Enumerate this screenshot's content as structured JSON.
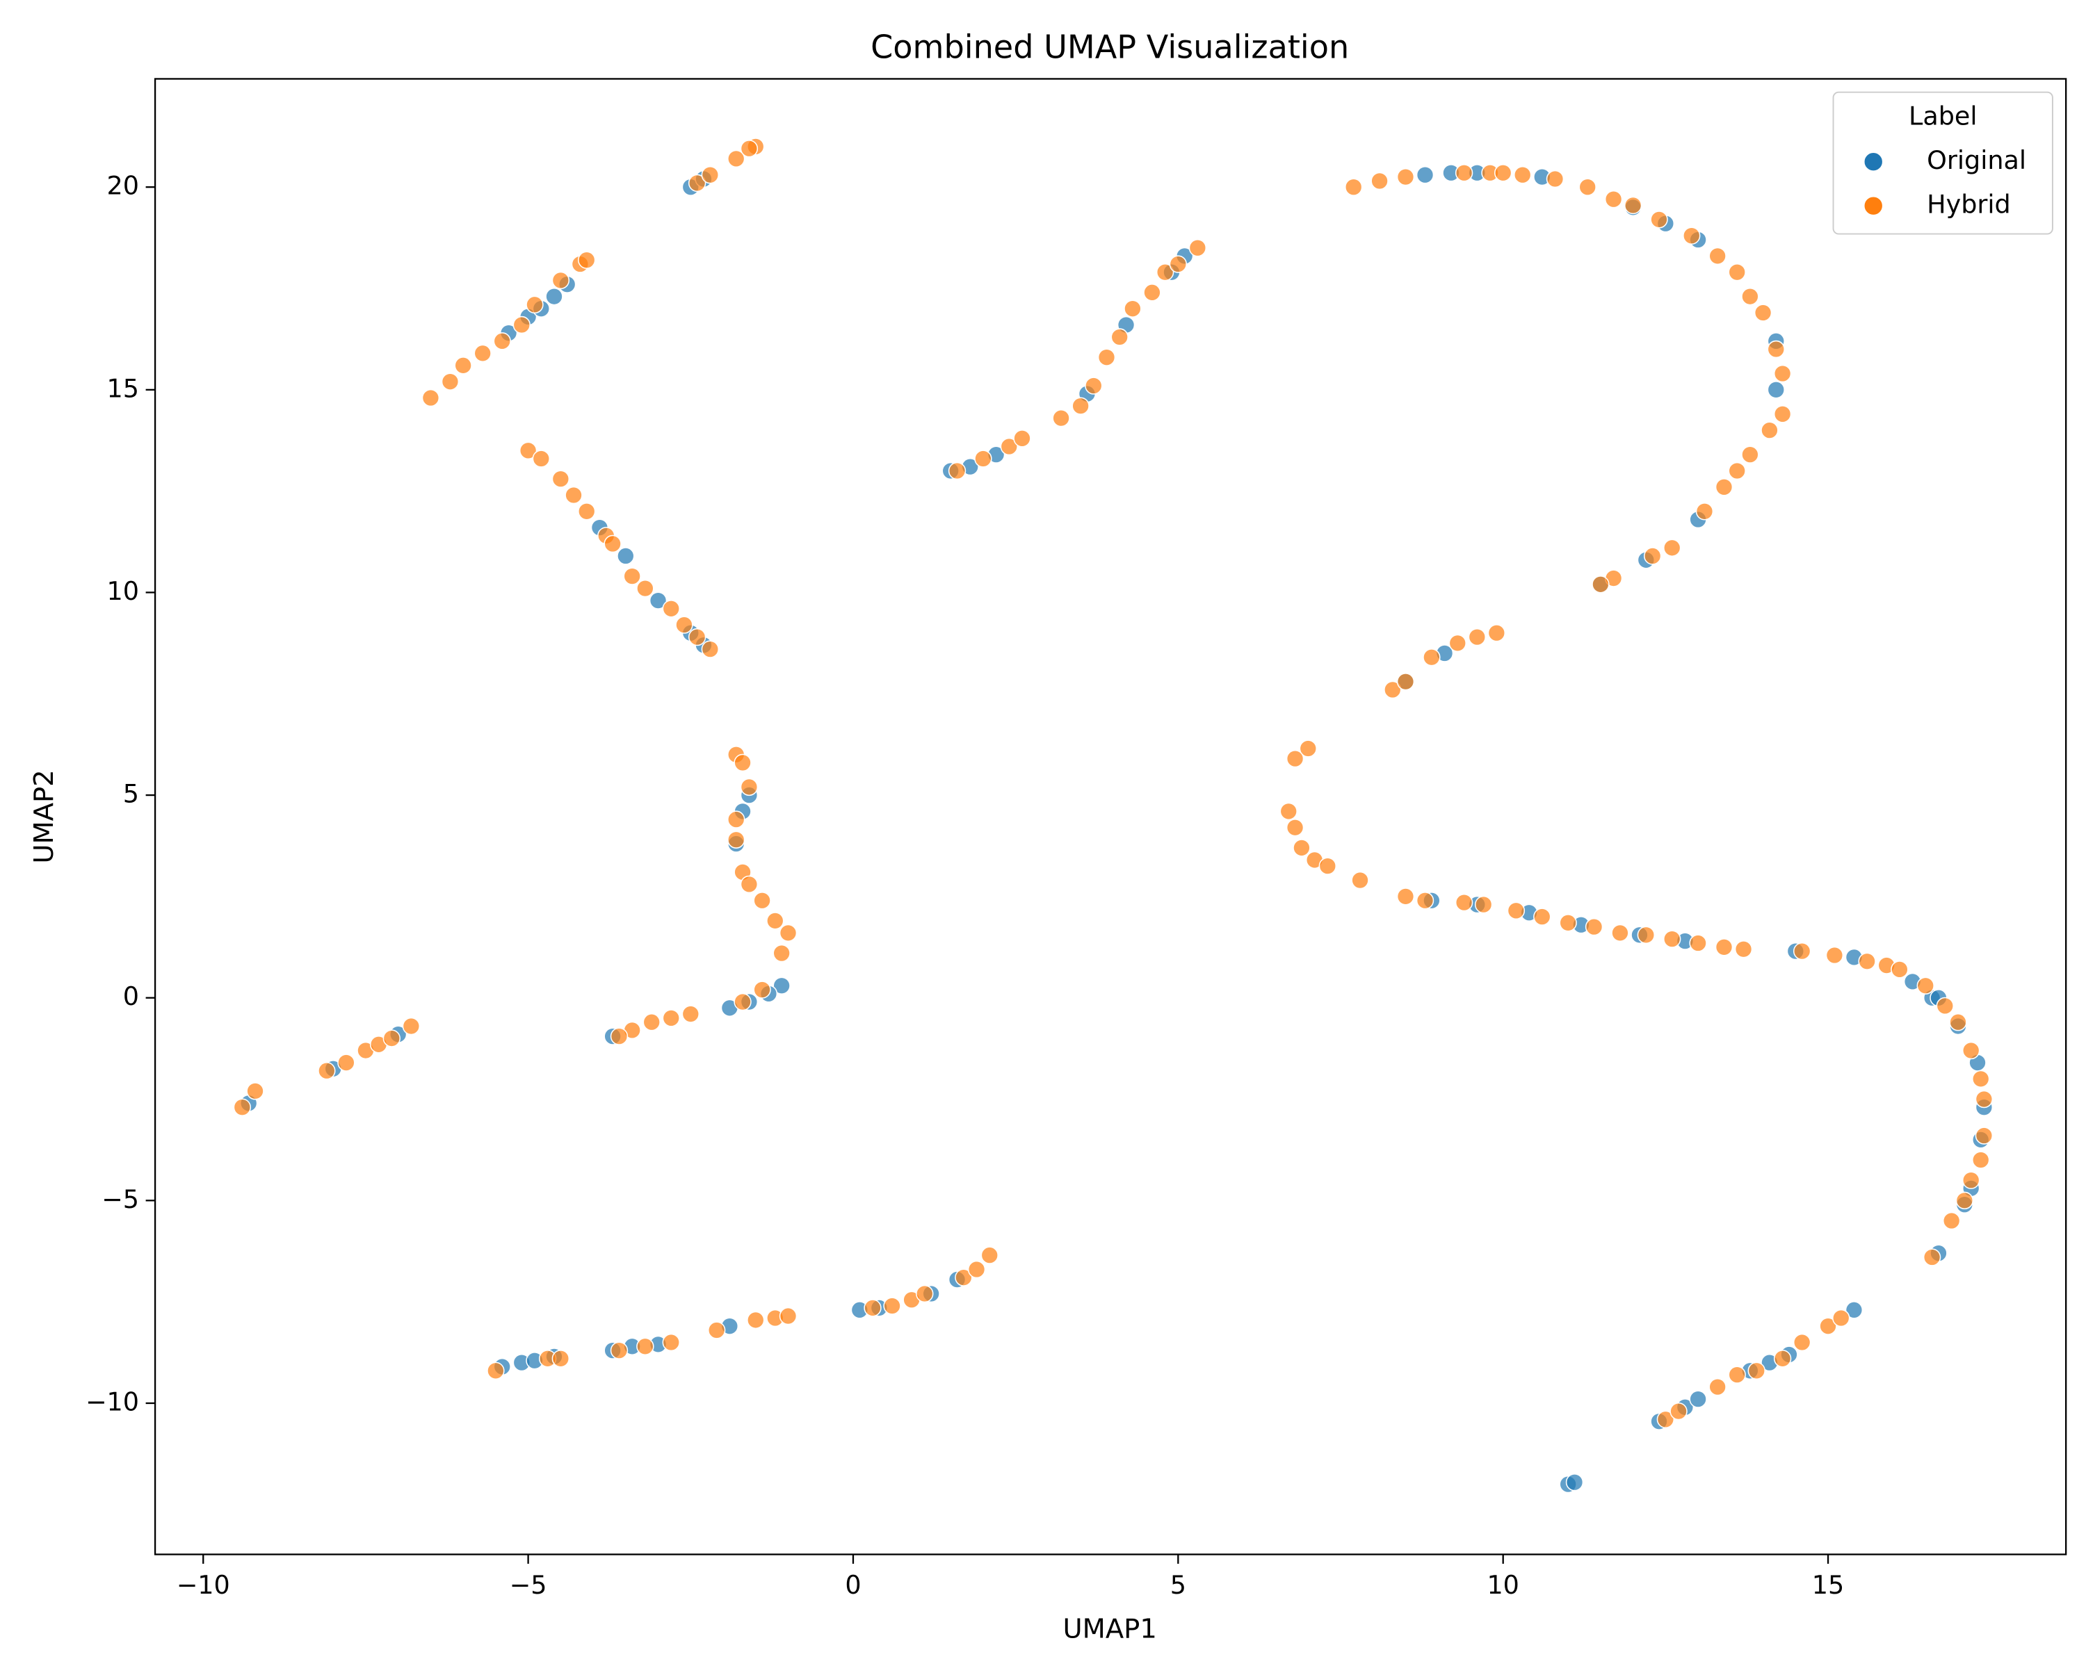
{
  "chart_data": {
    "type": "scatter",
    "title": "Combined UMAP Visualization",
    "xlabel": "UMAP1",
    "ylabel": "UMAP2",
    "xlim": [
      -10.74,
      18.66
    ],
    "ylim": [
      -13.73,
      22.67
    ],
    "xticks": [
      {
        "value": -10,
        "label": "−10"
      },
      {
        "value": -5,
        "label": "−5"
      },
      0,
      5,
      10,
      15
    ],
    "yticks": [
      {
        "value": -10,
        "label": "−10"
      },
      {
        "value": -5,
        "label": "−5"
      },
      0,
      5,
      10,
      15,
      20
    ],
    "grid": false,
    "legend_title": "Label",
    "legend_position": "upper right",
    "alpha": 0.7,
    "series": [
      {
        "name": "Original",
        "color": "#1f77b4",
        "x": [
          -2.5,
          -2.3,
          -5.3,
          -5.0,
          -4.8,
          -4.6,
          -4.4,
          -3.9,
          -3.5,
          -3.0,
          -2.5,
          -2.3,
          -1.6,
          -1.7,
          -1.8,
          -1.1,
          -1.3,
          -1.6,
          -1.9,
          -3.7,
          -9.3,
          -8.0,
          -7.0,
          -5.4,
          -5.1,
          -4.9,
          -4.6,
          -3.7,
          -3.4,
          -3.0,
          -1.9,
          0.1,
          0.4,
          1.2,
          1.6,
          1.5,
          1.8,
          2.2,
          3.6,
          4.2,
          4.9,
          5.1,
          8.8,
          9.2,
          9.6,
          10.6,
          12.0,
          12.5,
          13.0,
          14.2,
          14.2,
          13.0,
          11.5,
          12.2,
          8.5,
          9.1,
          8.9,
          9.6,
          10.4,
          11.2,
          12.1,
          12.8,
          14.5,
          15.4,
          16.3,
          16.6,
          16.7,
          17.0,
          17.3,
          17.4,
          17.35,
          17.2,
          17.1,
          16.7,
          12.4,
          12.8,
          13.0,
          13.8,
          14.1,
          14.4,
          15.4,
          11.0,
          11.1
        ],
        "values": [
          20.0,
          20.2,
          16.4,
          16.8,
          17.0,
          17.3,
          17.6,
          11.6,
          10.9,
          9.8,
          9.0,
          8.7,
          5.0,
          4.6,
          3.8,
          0.3,
          0.1,
          -0.1,
          -0.25,
          -0.95,
          -2.6,
          -1.75,
          -0.9,
          -9.1,
          -9.0,
          -8.95,
          -8.85,
          -8.7,
          -8.6,
          -8.55,
          -8.1,
          -7.7,
          -7.65,
          -7.3,
          -6.95,
          13.0,
          13.1,
          13.4,
          14.9,
          16.6,
          17.9,
          18.3,
          20.3,
          20.35,
          20.35,
          20.25,
          19.5,
          19.1,
          18.7,
          15.0,
          16.2,
          11.8,
          10.2,
          10.8,
          7.8,
          8.5,
          2.4,
          2.3,
          2.1,
          1.8,
          1.55,
          1.4,
          1.15,
          1.0,
          0.4,
          0.0,
          0.0,
          -0.7,
          -1.6,
          -2.7,
          -3.5,
          -4.7,
          -5.1,
          -6.3,
          -10.45,
          -10.1,
          -9.9,
          -9.2,
          -9.0,
          -8.8,
          -7.7,
          -12.0,
          -11.95
        ]
      },
      {
        "name": "Hybrid",
        "color": "#ff7f0e",
        "x": [
          -2.4,
          -2.2,
          -1.8,
          -1.5,
          -1.6,
          -6.5,
          -6.2,
          -6.0,
          -5.7,
          -5.4,
          -5.1,
          -4.9,
          -4.5,
          -4.2,
          -4.1,
          -5.0,
          -4.8,
          -4.5,
          -4.3,
          -4.1,
          -3.8,
          -3.7,
          -3.4,
          -3.2,
          -2.8,
          -2.6,
          -2.4,
          -2.2,
          -1.8,
          -1.7,
          -1.6,
          -1.8,
          -1.8,
          -1.7,
          -1.6,
          -1.4,
          -1.2,
          -1.0,
          -1.1,
          -1.4,
          -1.7,
          -2.5,
          -2.8,
          -3.1,
          -3.4,
          -3.6,
          -9.4,
          -9.2,
          -8.1,
          -7.8,
          -7.5,
          -7.3,
          -7.1,
          -6.8,
          -5.5,
          -4.7,
          -4.5,
          -3.6,
          -3.2,
          -2.8,
          -2.1,
          -1.5,
          -1.2,
          -1.0,
          0.3,
          0.6,
          0.9,
          1.1,
          1.7,
          1.9,
          2.1,
          1.6,
          2.0,
          2.4,
          2.6,
          3.2,
          3.5,
          3.7,
          3.9,
          4.1,
          4.3,
          4.6,
          4.8,
          5.0,
          5.3,
          7.7,
          8.1,
          8.5,
          9.4,
          9.8,
          10.0,
          10.3,
          10.8,
          11.3,
          11.7,
          12.0,
          12.4,
          12.9,
          13.3,
          13.6,
          13.8,
          14.0,
          14.2,
          14.3,
          14.3,
          14.1,
          13.8,
          13.6,
          13.4,
          13.1,
          12.6,
          12.3,
          11.7,
          11.5,
          8.3,
          8.5,
          8.9,
          9.3,
          9.6,
          9.9,
          7.0,
          6.8,
          6.7,
          6.8,
          6.9,
          7.1,
          7.3,
          7.8,
          8.5,
          8.8,
          9.4,
          9.7,
          10.2,
          10.6,
          11.0,
          11.4,
          11.8,
          12.2,
          12.6,
          13.0,
          13.4,
          13.7,
          14.6,
          15.1,
          15.6,
          15.9,
          16.1,
          16.5,
          16.8,
          17.0,
          17.2,
          17.35,
          17.4,
          17.4,
          17.35,
          17.2,
          17.1,
          16.9,
          16.6,
          12.5,
          12.7,
          13.3,
          13.6,
          13.9,
          14.3,
          14.6,
          15.0,
          15.2
        ],
        "values": [
          20.1,
          20.3,
          20.7,
          21.0,
          20.95,
          14.8,
          15.2,
          15.6,
          15.9,
          16.2,
          16.6,
          17.1,
          17.7,
          18.1,
          18.2,
          13.5,
          13.3,
          12.8,
          12.4,
          12.0,
          11.4,
          11.2,
          10.4,
          10.1,
          9.6,
          9.2,
          8.9,
          8.6,
          6.0,
          5.8,
          5.2,
          4.4,
          3.9,
          3.1,
          2.8,
          2.4,
          1.9,
          1.6,
          1.1,
          0.2,
          -0.1,
          -0.4,
          -0.5,
          -0.6,
          -0.8,
          -0.95,
          -2.7,
          -2.3,
          -1.8,
          -1.6,
          -1.3,
          -1.15,
          -1.0,
          -0.7,
          -9.2,
          -8.9,
          -8.9,
          -8.7,
          -8.6,
          -8.5,
          -8.2,
          -7.95,
          -7.9,
          -7.85,
          -7.65,
          -7.6,
          -7.45,
          -7.3,
          -6.9,
          -6.7,
          -6.35,
          13.0,
          13.3,
          13.6,
          13.8,
          14.3,
          14.6,
          15.1,
          15.8,
          16.3,
          17.0,
          17.4,
          17.9,
          18.1,
          18.5,
          20.0,
          20.15,
          20.25,
          20.35,
          20.35,
          20.35,
          20.3,
          20.2,
          20.0,
          19.7,
          19.55,
          19.2,
          18.8,
          18.3,
          17.9,
          17.3,
          16.9,
          16.0,
          15.4,
          14.4,
          14.0,
          13.4,
          13.0,
          12.6,
          12.0,
          11.1,
          10.9,
          10.35,
          10.2,
          7.6,
          7.8,
          8.4,
          8.75,
          8.9,
          9.0,
          6.15,
          5.9,
          4.6,
          4.2,
          3.7,
          3.4,
          3.25,
          2.9,
          2.5,
          2.4,
          2.35,
          2.3,
          2.15,
          2.0,
          1.85,
          1.75,
          1.6,
          1.55,
          1.45,
          1.35,
          1.25,
          1.2,
          1.15,
          1.05,
          0.9,
          0.8,
          0.7,
          0.3,
          -0.2,
          -0.6,
          -1.3,
          -2.0,
          -2.5,
          -3.4,
          -4.0,
          -4.5,
          -5.0,
          -5.5,
          -6.4,
          -10.4,
          -10.2,
          -9.6,
          -9.3,
          -9.2,
          -8.9,
          -8.5,
          -8.1,
          -7.9
        ]
      }
    ]
  }
}
